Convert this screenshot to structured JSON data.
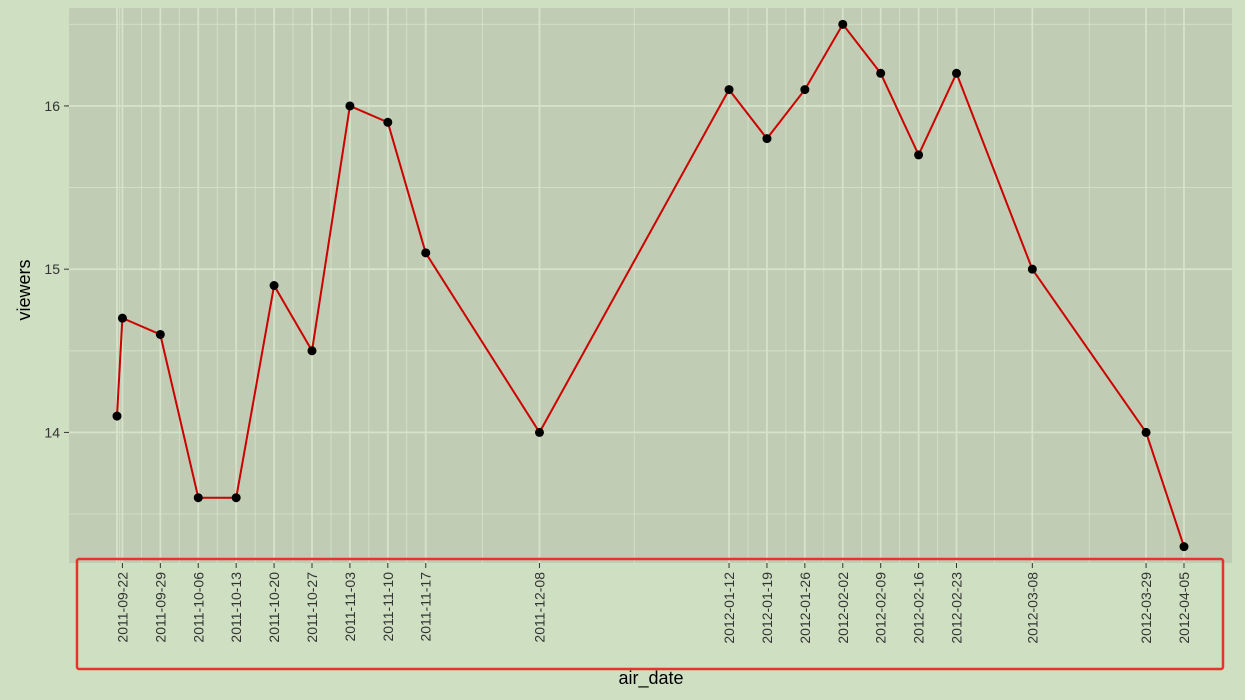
{
  "chart_data": {
    "type": "line",
    "title": "",
    "xlabel": "air_date",
    "ylabel": "viewers",
    "x": [
      "2011-09-21",
      "2011-09-22",
      "2011-09-29",
      "2011-10-06",
      "2011-10-13",
      "2011-10-20",
      "2011-10-27",
      "2011-11-03",
      "2011-11-10",
      "2011-11-17",
      "2011-12-08",
      "2012-01-12",
      "2012-01-19",
      "2012-01-26",
      "2012-02-02",
      "2012-02-09",
      "2012-02-16",
      "2012-02-23",
      "2012-03-08",
      "2012-03-29",
      "2012-04-05"
    ],
    "y": [
      14.1,
      14.7,
      14.6,
      13.6,
      13.6,
      14.9,
      14.5,
      16.0,
      15.9,
      15.1,
      14.0,
      16.1,
      15.8,
      16.1,
      16.5,
      16.2,
      15.7,
      16.2,
      15.0,
      14.0,
      13.3
    ],
    "x_tick_labels": [
      "2011-09-22",
      "2011-09-29",
      "2011-10-06",
      "2011-10-13",
      "2011-10-20",
      "2011-10-27",
      "2011-11-03",
      "2011-11-10",
      "2011-11-17",
      "2011-12-08",
      "2012-01-12",
      "2012-01-19",
      "2012-01-26",
      "2012-02-02",
      "2012-02-09",
      "2012-02-16",
      "2012-02-23",
      "2012-03-08",
      "2012-03-29",
      "2012-04-05"
    ],
    "y_ticks": [
      14,
      15,
      16
    ],
    "y_tick_labels": [
      "14",
      "15",
      "16"
    ],
    "ylim": [
      13.2,
      16.6
    ],
    "grid": true,
    "line_color": "#cc0000",
    "point_color": "#000000",
    "panel_background": "#c0ccb4",
    "gridline_color": "#d6e2ca",
    "highlight_box_color": "#e8332a"
  }
}
